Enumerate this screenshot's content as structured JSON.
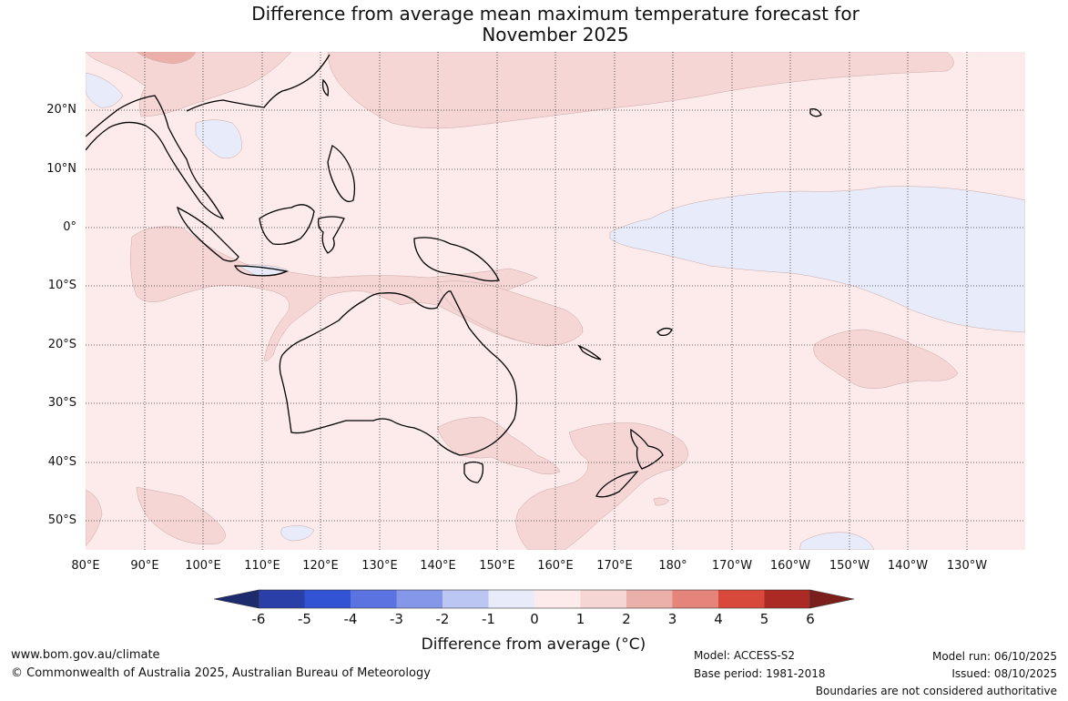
{
  "title": {
    "line1": "Difference from average mean maximum temperature forecast for",
    "line2": "November 2025"
  },
  "map": {
    "latitude_labels": [
      "20°N",
      "10°N",
      "0°",
      "10°S",
      "20°S",
      "30°S",
      "40°S",
      "50°S"
    ],
    "longitude_labels": [
      "80°E",
      "90°E",
      "100°E",
      "110°E",
      "120°E",
      "130°E",
      "140°E",
      "150°E",
      "160°E",
      "170°E",
      "180°",
      "170°W",
      "160°W",
      "150°W",
      "140°W",
      "130°W"
    ],
    "colors": {
      "minus6_under": "#1c2a6e",
      "minus6_minus5": "#2a3fa8",
      "minus5_minus4": "#3153d4",
      "minus4_minus3": "#5a73e0",
      "minus3_minus2": "#8497e8",
      "minus2_minus1": "#bcc6f2",
      "minus1_zero": "#e8ebfa",
      "zero_one": "#fcebea",
      "one_two": "#f5d6d5",
      "two_three": "#ecb0aa",
      "three_four": "#e4847a",
      "four_five": "#d9493b",
      "five_six": "#ab2a24",
      "over_six": "#7a1f1b"
    }
  },
  "colorbar": {
    "ticks": [
      "-6",
      "-5",
      "-4",
      "-3",
      "-2",
      "-1",
      "0",
      "1",
      "2",
      "3",
      "4",
      "5",
      "6"
    ],
    "label": "Difference from average (°C)"
  },
  "footer": {
    "website": "www.bom.gov.au/climate",
    "copyright": "© Commonwealth of Australia 2025, Australian Bureau of Meteorology",
    "model": "Model: ACCESS-S2",
    "base_period": "Base period: 1981-2018",
    "model_run": "Model run: 06/10/2025",
    "issued": "Issued: 08/10/2025",
    "disclaimer": "Boundaries are not considered authoritative"
  }
}
